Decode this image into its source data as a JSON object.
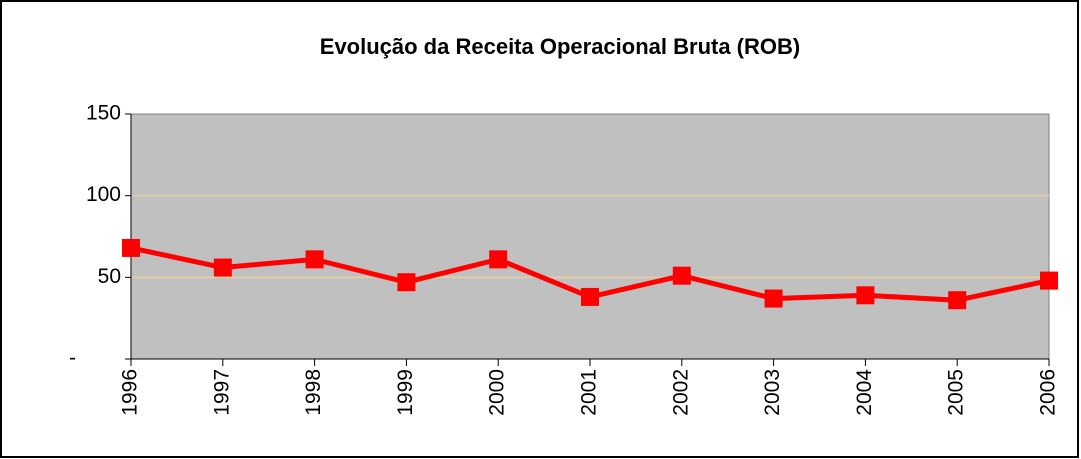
{
  "chart_data": {
    "type": "line",
    "title": "Evolução da Receita Operacional Bruta (ROB)",
    "categories": [
      "1996",
      "1997",
      "1998",
      "1999",
      "2000",
      "2001",
      "2002",
      "2003",
      "2004",
      "2005",
      "2006"
    ],
    "series": [
      {
        "name": "ROB",
        "color": "#ff0000",
        "values": [
          68,
          56,
          61,
          47,
          61,
          38,
          51,
          37,
          39,
          36,
          48
        ]
      }
    ],
    "ylim": [
      0,
      150
    ],
    "yticks": [
      {
        "value": 0,
        "label": "-"
      },
      50,
      100,
      150
    ],
    "grid": true,
    "grid_color": "#e8cfa0",
    "plot_background": "#c0c0c0"
  }
}
